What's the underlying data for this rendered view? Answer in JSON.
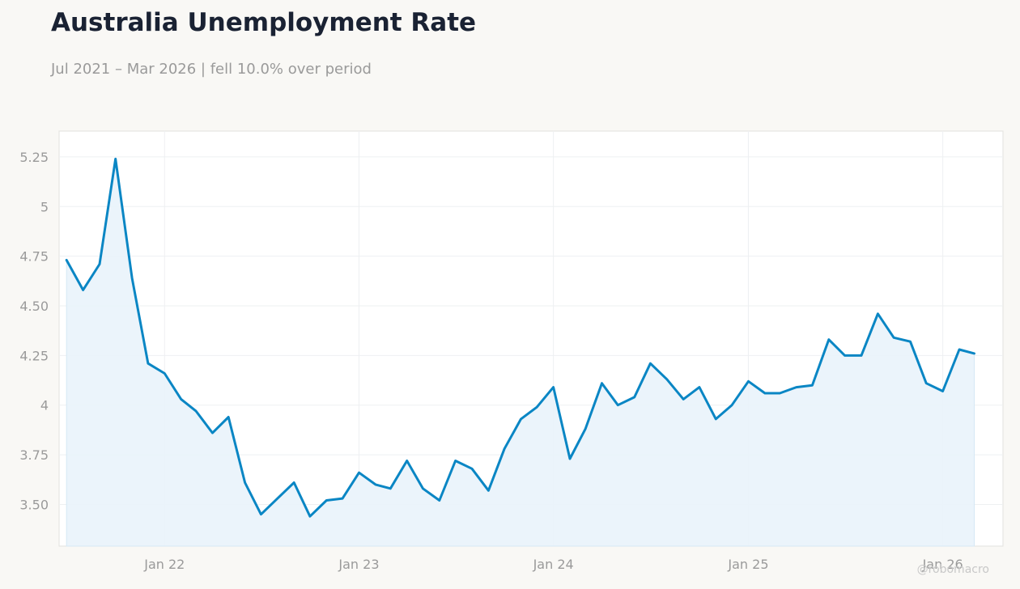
{
  "header": {
    "title": "Australia Unemployment Rate",
    "subtitle": "Jul 2021 – Mar 2026 | fell 10.0% over period"
  },
  "watermark": "@robomacro",
  "colors": {
    "line": "#0a86c4",
    "fill": "#e9f3fb",
    "grid": "#eef0f2",
    "axis_text": "#9a9a9a",
    "background": "#f9f8f5",
    "plot_background": "#ffffff"
  },
  "chart_data": {
    "type": "area",
    "title": "Australia Unemployment Rate",
    "subtitle": "Jul 2021 – Mar 2026 | fell 10.0% over period",
    "xlabel": "",
    "ylabel": "",
    "x_range": [
      "2021-06-17",
      "2026-04-24"
    ],
    "ylim": [
      3.29,
      5.38
    ],
    "grid": true,
    "legend": "none",
    "yticks": [
      {
        "value": 3.5,
        "label": "3.50"
      },
      {
        "value": 3.75,
        "label": "3.75"
      },
      {
        "value": 4.0,
        "label": "4"
      },
      {
        "value": 4.25,
        "label": "4.25"
      },
      {
        "value": 4.5,
        "label": "4.50"
      },
      {
        "value": 4.75,
        "label": "4.75"
      },
      {
        "value": 5.0,
        "label": "5"
      },
      {
        "value": 5.25,
        "label": "5.25"
      }
    ],
    "xticks": [
      {
        "date": "2022-01-01",
        "label": "Jan 22"
      },
      {
        "date": "2023-01-01",
        "label": "Jan 23"
      },
      {
        "date": "2024-01-01",
        "label": "Jan 24"
      },
      {
        "date": "2025-01-01",
        "label": "Jan 25"
      },
      {
        "date": "2026-01-01",
        "label": "Jan 26"
      }
    ],
    "series": [
      {
        "x": [
          "2021-07",
          "2021-08",
          "2021-09",
          "2021-10",
          "2021-11",
          "2021-12",
          "2022-01",
          "2022-02",
          "2022-03",
          "2022-04",
          "2022-05",
          "2022-06",
          "2022-07",
          "2022-08",
          "2022-09",
          "2022-10",
          "2022-11",
          "2022-12",
          "2023-01",
          "2023-02",
          "2023-03",
          "2023-04",
          "2023-05",
          "2023-06",
          "2023-07",
          "2023-08",
          "2023-09",
          "2023-10",
          "2023-11",
          "2023-12",
          "2024-01",
          "2024-02",
          "2024-03",
          "2024-04",
          "2024-05",
          "2024-06",
          "2024-07",
          "2024-08",
          "2024-09",
          "2024-10",
          "2024-11",
          "2024-12",
          "2025-01",
          "2025-02",
          "2025-03",
          "2025-04",
          "2025-05",
          "2025-06",
          "2025-07",
          "2025-08",
          "2025-09",
          "2025-10",
          "2025-11",
          "2025-12",
          "2026-01",
          "2026-02",
          "2026-03"
        ],
        "values": [
          4.73,
          4.58,
          4.71,
          5.24,
          4.64,
          4.21,
          4.16,
          4.03,
          3.97,
          3.86,
          3.94,
          3.61,
          3.45,
          3.53,
          3.61,
          3.44,
          3.52,
          3.53,
          3.66,
          3.6,
          3.58,
          3.72,
          3.58,
          3.52,
          3.72,
          3.68,
          3.57,
          3.78,
          3.93,
          3.99,
          4.09,
          3.73,
          3.88,
          4.11,
          4.0,
          4.04,
          4.21,
          4.13,
          4.03,
          4.09,
          3.93,
          4.0,
          4.12,
          4.06,
          4.06,
          4.09,
          4.1,
          4.33,
          4.25,
          4.25,
          4.46,
          4.34,
          4.32,
          4.11,
          4.07,
          4.28,
          4.26
        ]
      }
    ]
  }
}
